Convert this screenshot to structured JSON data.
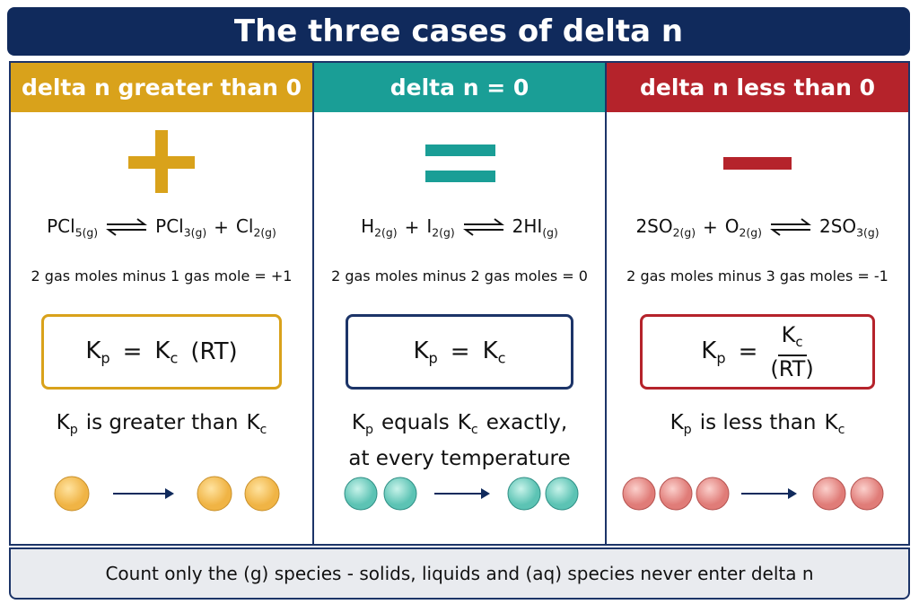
{
  "header": {
    "title": "The three cases of delta n"
  },
  "columns": [
    {
      "heading": "delta n greater than 0",
      "reaction": {
        "reactants": [
          {
            "base": "PCl",
            "sub": "5(g)"
          }
        ],
        "products": [
          {
            "base": "PCl",
            "sub": "3(g)"
          },
          "+",
          {
            "base": "Cl",
            "sub": "2(g)"
          }
        ]
      },
      "calculation": "2 gas moles minus 1 gas mole = +1",
      "formula": [
        {
          "base": "K",
          "sub": "p"
        },
        "=",
        {
          "base": "K",
          "sub": "c"
        },
        "(RT)"
      ],
      "statement": [
        [
          {
            "base": "K",
            "sub": "p"
          },
          "is greater than",
          {
            "base": "K",
            "sub": "c"
          }
        ]
      ]
    },
    {
      "heading": "delta n = 0",
      "reaction": {
        "reactants": [
          {
            "base": "H",
            "sub": "2(g)"
          },
          "+",
          {
            "base": "I",
            "sub": "2(g)"
          }
        ],
        "products": [
          {
            "base": "2HI",
            "sub": "(g)"
          }
        ]
      },
      "calculation": "2 gas moles minus 2 gas moles = 0",
      "formula": [
        {
          "base": "K",
          "sub": "p"
        },
        "=",
        {
          "base": "K",
          "sub": "c"
        }
      ],
      "statement": [
        [
          {
            "base": "K",
            "sub": "p"
          },
          "equals",
          {
            "base": "K",
            "sub": "c"
          },
          "exactly,"
        ],
        [
          "at every temperature"
        ]
      ]
    },
    {
      "heading": "delta n less than 0",
      "reaction": {
        "reactants": [
          {
            "base": "2SO",
            "sub": "2(g)"
          },
          "+",
          {
            "base": "O",
            "sub": "2(g)"
          }
        ],
        "products": [
          {
            "base": "2SO",
            "sub": "3(g)"
          }
        ]
      },
      "calculation": "2 gas moles minus 3 gas moles = -1",
      "formula": [
        {
          "base": "K",
          "sub": "p"
        },
        "=",
        {
          "num": {
            "base": "K",
            "sub": "c"
          },
          "den": "(RT)"
        }
      ],
      "statement": [
        [
          {
            "base": "K",
            "sub": "p"
          },
          "is less than",
          {
            "base": "K",
            "sub": "c"
          }
        ]
      ]
    }
  ],
  "footer": {
    "note": "Count only the (g) species - solids, liquids and (aq) species never enter delta n"
  }
}
